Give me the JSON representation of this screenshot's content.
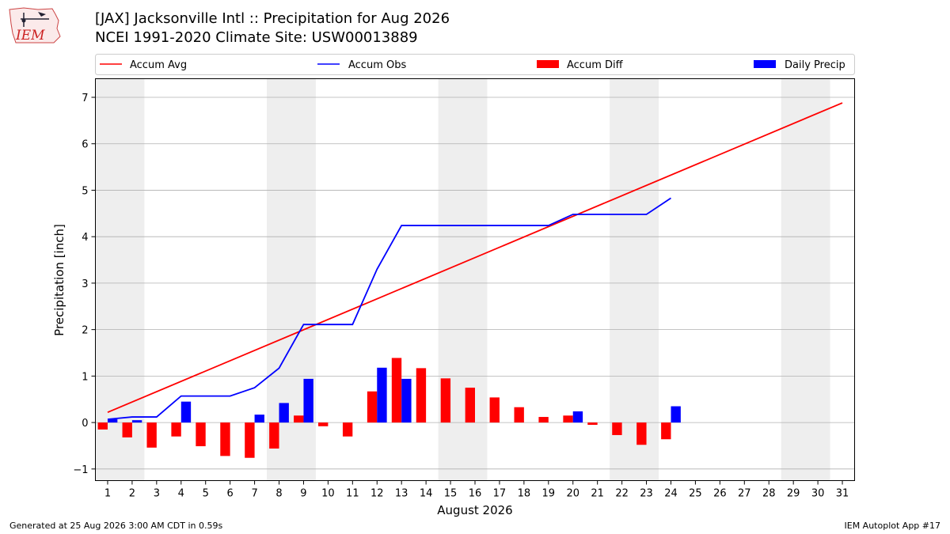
{
  "header": {
    "logo_text": "IEM",
    "title_line1": "[JAX] Jacksonville Intl :: Precipitation for Aug 2026",
    "title_line2": "NCEI 1991-2020 Climate Site: USW00013889"
  },
  "footer": {
    "generated": "Generated at 25 Aug 2026 3:00 AM CDT in 0.59s",
    "app": "IEM Autoplot App #17"
  },
  "colors": {
    "accum_avg": "#ff0000",
    "accum_obs": "#0000ff",
    "accum_diff": "#ff0000",
    "daily_precip": "#0000ff",
    "weekend_band": "#eeeeee",
    "grid": "#b0b0b0"
  },
  "chart_data": {
    "type": "bar",
    "xlabel": "August 2026",
    "ylabel": "Precipitation [inch]",
    "xlim": [
      0.5,
      31.5
    ],
    "ylim": [
      -1.25,
      7.4
    ],
    "yticks": [
      -1,
      0,
      1,
      2,
      3,
      4,
      5,
      6,
      7
    ],
    "x": [
      1,
      2,
      3,
      4,
      5,
      6,
      7,
      8,
      9,
      10,
      11,
      12,
      13,
      14,
      15,
      16,
      17,
      18,
      19,
      20,
      21,
      22,
      23,
      24,
      25,
      26,
      27,
      28,
      29,
      30,
      31
    ],
    "grid": "horizontal",
    "legend_position": "top",
    "weekend_bands": [
      [
        1,
        2
      ],
      [
        8,
        9
      ],
      [
        15,
        16
      ],
      [
        22,
        23
      ],
      [
        29,
        30
      ]
    ],
    "legend": [
      "Accum Avg",
      "Accum Obs",
      "Accum Diff",
      "Daily Precip"
    ],
    "series": [
      {
        "name": "Accum Avg",
        "kind": "line",
        "x": [
          1,
          31
        ],
        "values": [
          0.22,
          6.88
        ]
      },
      {
        "name": "Accum Obs",
        "kind": "line",
        "x": [
          1,
          2,
          3,
          4,
          5,
          6,
          7,
          8,
          9,
          10,
          11,
          12,
          13,
          14,
          15,
          16,
          17,
          18,
          19,
          20,
          21,
          22,
          23,
          24
        ],
        "values": [
          0.07,
          0.12,
          0.12,
          0.57,
          0.57,
          0.57,
          0.75,
          1.17,
          2.11,
          2.11,
          2.11,
          3.3,
          4.24,
          4.24,
          4.24,
          4.24,
          4.24,
          4.24,
          4.24,
          4.48,
          4.48,
          4.48,
          4.48,
          4.83
        ]
      },
      {
        "name": "Accum Diff",
        "kind": "bar",
        "x": [
          1,
          2,
          3,
          4,
          5,
          6,
          7,
          8,
          9,
          10,
          11,
          12,
          13,
          14,
          15,
          16,
          17,
          18,
          19,
          20,
          21,
          22,
          23,
          24
        ],
        "values": [
          -0.15,
          -0.32,
          -0.54,
          -0.3,
          -0.51,
          -0.72,
          -0.76,
          -0.56,
          0.15,
          -0.08,
          -0.3,
          0.67,
          1.39,
          1.17,
          0.95,
          0.75,
          0.54,
          0.33,
          0.12,
          0.15,
          -0.05,
          -0.27,
          -0.48,
          -0.36
        ]
      },
      {
        "name": "Daily Precip",
        "kind": "bar",
        "x": [
          1,
          2,
          3,
          4,
          5,
          6,
          7,
          8,
          9,
          10,
          11,
          12,
          13,
          14,
          15,
          16,
          17,
          18,
          19,
          20,
          21,
          22,
          23,
          24
        ],
        "values": [
          0.07,
          0.05,
          0,
          0.45,
          0,
          0,
          0.17,
          0.42,
          0.94,
          0,
          0,
          1.18,
          0.94,
          0,
          0,
          0,
          0,
          0,
          0,
          0.24,
          0,
          0,
          0,
          0.35
        ]
      }
    ]
  }
}
